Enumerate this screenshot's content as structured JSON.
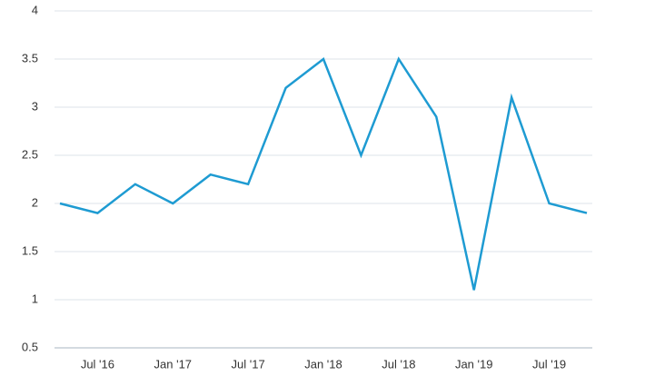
{
  "chart_data": {
    "type": "line",
    "categories": [
      null,
      "Jul '16",
      null,
      "Jan '17",
      null,
      "Jul '17",
      null,
      "Jan '18",
      null,
      "Jul '18",
      null,
      "Jan '19",
      null,
      "Jul '19",
      null
    ],
    "series": [
      {
        "name": null,
        "color": "#1e9bd2",
        "values": [
          2.0,
          1.9,
          2.2,
          2.0,
          2.3,
          2.2,
          3.2,
          3.5,
          2.5,
          3.5,
          2.9,
          1.1,
          3.1,
          2.0,
          1.9
        ]
      }
    ],
    "ylim": [
      0.5,
      4
    ],
    "yticks": [
      0.5,
      1,
      1.5,
      2,
      2.5,
      3,
      3.5,
      4
    ],
    "grid": true
  }
}
